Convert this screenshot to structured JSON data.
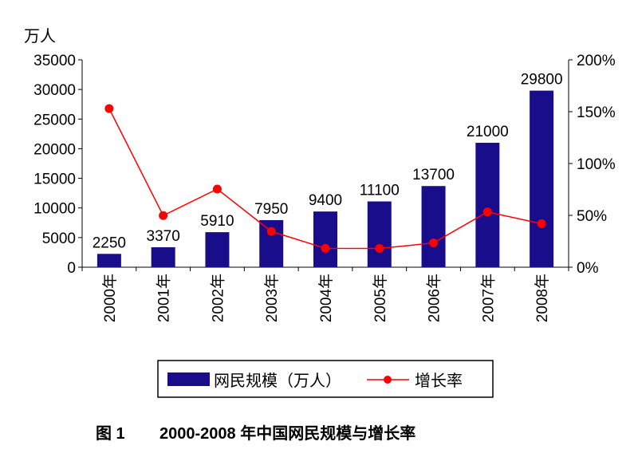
{
  "chart_data": {
    "type": "bar+line",
    "title": "2000-2008 年中国网民规模与增长率",
    "figure_label": "图 1",
    "ylabel_left": "万人",
    "categories": [
      "2000年",
      "2001年",
      "2002年",
      "2003年",
      "2004年",
      "2005年",
      "2006年",
      "2007年",
      "2008年"
    ],
    "series": [
      {
        "name": "网民规模（万人）",
        "type": "bar",
        "axis": "left",
        "color": "#1a0d8c",
        "values": [
          2250,
          3370,
          5910,
          7950,
          9400,
          11100,
          13700,
          21000,
          29800
        ]
      },
      {
        "name": "增长率",
        "type": "line",
        "axis": "right",
        "color": "#ff0000",
        "values": [
          153,
          49.8,
          75.4,
          34.5,
          18.2,
          18.1,
          23.4,
          53.3,
          41.9
        ]
      }
    ],
    "ylim_left": [
      0,
      35000
    ],
    "yticks_left": [
      "0",
      "5000",
      "10000",
      "15000",
      "20000",
      "25000",
      "30000",
      "35000"
    ],
    "ylim_right": [
      0,
      200
    ],
    "yticks_right": [
      "0%",
      "50%",
      "100%",
      "150%",
      "200%"
    ],
    "legend": "bottom",
    "grid": false
  }
}
